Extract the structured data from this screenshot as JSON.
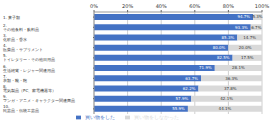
{
  "chart_data": {
    "type": "bar",
    "orientation": "horizontal",
    "stacked": true,
    "data_labels": true,
    "grid": true,
    "legend": "bottom",
    "categories": [
      "1. 菓子類",
      "2. その他食料・飲料品",
      "3. 化粧品・香水",
      "4. 医薬品・サプリメント",
      "5. トイレタリー・その他日用品",
      "6. 生活雑貨・レジャー関連用品",
      "7. 衣類・靴・鞄",
      "8. 電気製品（PC、家電機器等）",
      "9. マンガ・アニメ・キャラクター関連商品",
      "10. 民芸品・伝統工芸品"
    ],
    "xlim": [
      0,
      100
    ],
    "xticks": [
      {
        "value": 0,
        "label": "0%"
      },
      {
        "value": 20,
        "label": "20%"
      },
      {
        "value": 40,
        "label": "40%"
      },
      {
        "value": 60,
        "label": "60%"
      },
      {
        "value": 80,
        "label": "80%"
      },
      {
        "value": 100,
        "label": "100%"
      }
    ],
    "series": [
      {
        "name": "買い物をした",
        "color": "#4472c4",
        "values": [
          94.7,
          93.3,
          85.3,
          80.0,
          82.5,
          71.9,
          63.7,
          62.2,
          57.9,
          55.9
        ],
        "value_labels": [
          "94.7%",
          "93.3%",
          "85.3%",
          "80.0%",
          "82.5%",
          "71.9%",
          "63.7%",
          "62.2%",
          "57.9%",
          "55.9%"
        ]
      },
      {
        "name": "買い物をしなかった",
        "color": "#d9d9d9",
        "values": [
          5.3,
          6.7,
          14.7,
          20.0,
          17.5,
          28.1,
          36.3,
          37.8,
          42.1,
          44.1
        ],
        "value_labels": [
          "5.3%",
          "6.7%",
          "14.7%",
          "20.0%",
          "17.5%",
          "28.1%",
          "36.3%",
          "37.8%",
          "42.1%",
          "44.1%"
        ]
      }
    ]
  }
}
